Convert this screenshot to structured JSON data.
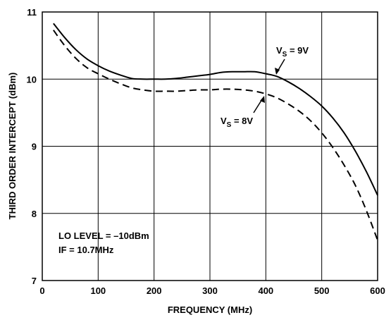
{
  "chart_data": {
    "type": "line",
    "xlabel": "FREQUENCY (MHz)",
    "ylabel": "THIRD ORDER INTERCEPT (dBm)",
    "xlim": [
      0,
      600
    ],
    "ylim": [
      7,
      11
    ],
    "xticks": [
      "0",
      "100",
      "200",
      "300",
      "400",
      "500",
      "600"
    ],
    "yticks": [
      "7",
      "8",
      "9",
      "10",
      "11"
    ],
    "grid": true,
    "series": [
      {
        "name": "VS = 9V",
        "label_main": "V",
        "label_sub": "S",
        "label_rest": " = 9V",
        "style": "solid",
        "x": [
          20,
          40,
          60,
          80,
          100,
          120,
          140,
          160,
          180,
          200,
          220,
          240,
          260,
          280,
          300,
          320,
          340,
          360,
          380,
          400,
          420,
          440,
          460,
          480,
          500,
          520,
          540,
          560,
          580,
          600
        ],
        "y": [
          10.83,
          10.62,
          10.44,
          10.3,
          10.2,
          10.12,
          10.06,
          10.01,
          10.0,
          10.0,
          10.0,
          10.01,
          10.03,
          10.05,
          10.07,
          10.1,
          10.11,
          10.11,
          10.11,
          10.08,
          10.04,
          9.96,
          9.86,
          9.74,
          9.6,
          9.42,
          9.2,
          8.93,
          8.62,
          8.27
        ]
      },
      {
        "name": "VS = 8V",
        "label_main": "V",
        "label_sub": "S",
        "label_rest": " = 8V",
        "style": "dashed",
        "x": [
          20,
          40,
          60,
          80,
          100,
          120,
          140,
          160,
          180,
          200,
          220,
          240,
          260,
          280,
          300,
          320,
          340,
          360,
          380,
          400,
          420,
          440,
          460,
          480,
          500,
          520,
          540,
          560,
          580,
          600
        ],
        "y": [
          10.73,
          10.5,
          10.31,
          10.17,
          10.08,
          10.0,
          9.93,
          9.87,
          9.84,
          9.82,
          9.82,
          9.82,
          9.83,
          9.84,
          9.84,
          9.85,
          9.85,
          9.84,
          9.82,
          9.78,
          9.72,
          9.63,
          9.52,
          9.38,
          9.2,
          8.98,
          8.72,
          8.42,
          8.04,
          7.6
        ]
      }
    ],
    "annotations": [
      "LO LEVEL = –10dBm",
      "IF = 10.7MHz"
    ]
  }
}
